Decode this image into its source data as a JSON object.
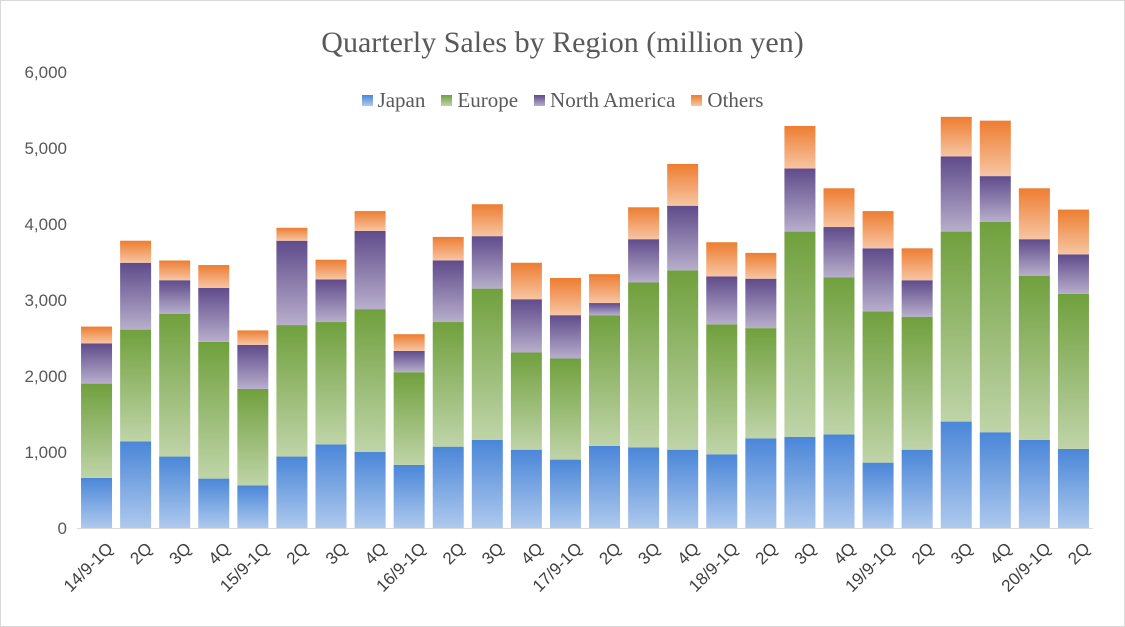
{
  "chart_data": {
    "type": "bar",
    "stacked": true,
    "title": "Quarterly Sales by Region (million yen)",
    "xlabel": "",
    "ylabel": "",
    "ylim": [
      0,
      6000
    ],
    "yticks": [
      0,
      1000,
      2000,
      3000,
      4000,
      5000,
      6000
    ],
    "ytick_labels": [
      "0",
      "1,000",
      "2,000",
      "3,000",
      "4,000",
      "5,000",
      "6,000"
    ],
    "grid": false,
    "legend_position": "top",
    "categories": [
      "14/9-1Q",
      "2Q",
      "3Q",
      "4Q",
      "15/9-1Q",
      "2Q",
      "3Q",
      "4Q",
      "16/9-1Q",
      "2Q",
      "3Q",
      "4Q",
      "17/9-1Q",
      "2Q",
      "3Q",
      "4Q",
      "18/9-1Q",
      "2Q",
      "3Q",
      "4Q",
      "19/9-1Q",
      "2Q",
      "3Q",
      "4Q",
      "20/9-1Q",
      "2Q"
    ],
    "series": [
      {
        "name": "Japan",
        "color": "#4a86d8",
        "values": [
          660,
          1140,
          940,
          650,
          560,
          940,
          1100,
          1000,
          830,
          1070,
          1160,
          1030,
          900,
          1080,
          1060,
          1030,
          970,
          1180,
          1200,
          1230,
          860,
          1030,
          1400,
          1260,
          1160,
          1040
        ]
      },
      {
        "name": "Europe",
        "color": "#70a03d",
        "values": [
          1240,
          1470,
          1880,
          1800,
          1270,
          1730,
          1610,
          1880,
          1220,
          1640,
          1990,
          1280,
          1330,
          1720,
          2170,
          2360,
          1710,
          1450,
          2700,
          2070,
          1990,
          1750,
          2500,
          2770,
          2160,
          2040
        ]
      },
      {
        "name": "North America",
        "color": "#5f4b8b",
        "values": [
          530,
          880,
          440,
          710,
          580,
          1110,
          560,
          1030,
          280,
          810,
          690,
          700,
          570,
          160,
          570,
          850,
          630,
          650,
          830,
          660,
          830,
          480,
          990,
          600,
          480,
          520
        ]
      },
      {
        "name": "Others",
        "color": "#ed7d31",
        "values": [
          220,
          290,
          260,
          300,
          190,
          170,
          260,
          260,
          220,
          310,
          420,
          480,
          490,
          380,
          420,
          550,
          450,
          340,
          560,
          510,
          490,
          420,
          520,
          730,
          670,
          590
        ]
      }
    ]
  }
}
